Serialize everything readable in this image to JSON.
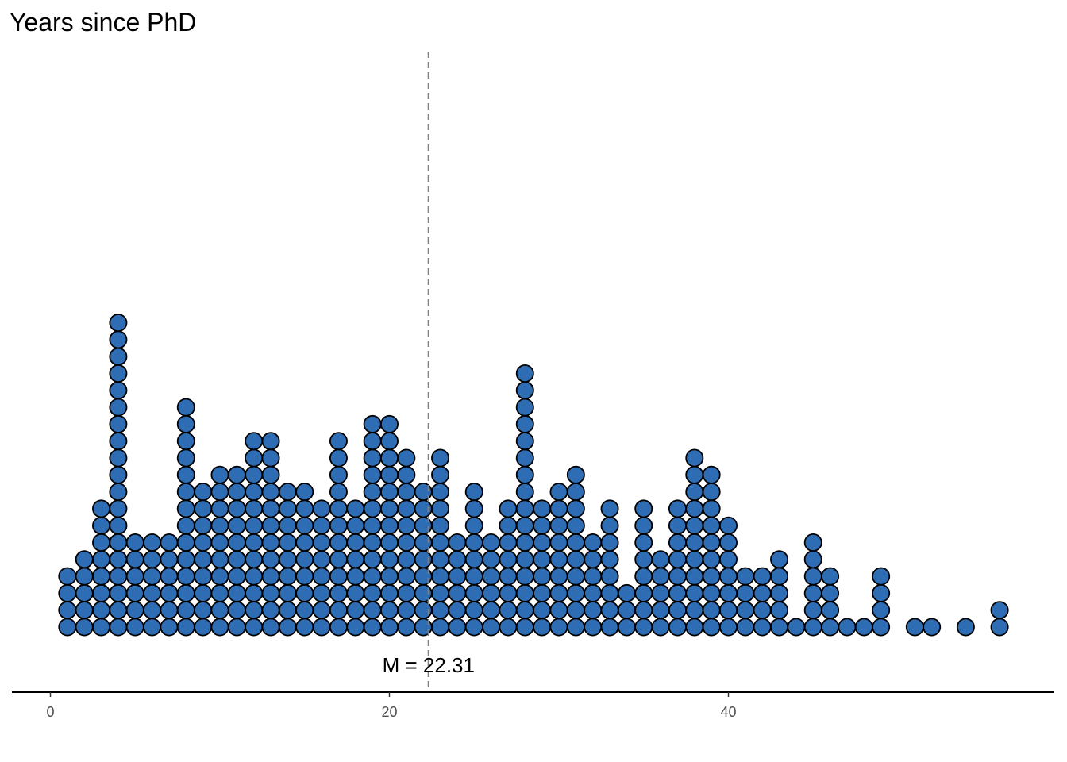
{
  "chart_data": {
    "type": "dotplot",
    "title": "Years since PhD",
    "xlabel": "",
    "ylabel": "",
    "xlim": [
      -1,
      59
    ],
    "x_ticks": [
      0,
      20,
      40
    ],
    "x_tick_labels": [
      "0",
      "20",
      "40"
    ],
    "grid": false,
    "legend": "none",
    "dot_fill": "#2E6DB4",
    "dot_stroke": "#000000",
    "mean": {
      "value": 22.31,
      "label": "M = 22.31",
      "line_color": "#808080"
    },
    "bins": [
      {
        "x": 1,
        "count": 4
      },
      {
        "x": 2,
        "count": 5
      },
      {
        "x": 3,
        "count": 8
      },
      {
        "x": 4,
        "count": 19
      },
      {
        "x": 5,
        "count": 6
      },
      {
        "x": 6,
        "count": 6
      },
      {
        "x": 7,
        "count": 6
      },
      {
        "x": 8,
        "count": 14
      },
      {
        "x": 9,
        "count": 9
      },
      {
        "x": 10,
        "count": 10
      },
      {
        "x": 11,
        "count": 10
      },
      {
        "x": 12,
        "count": 12
      },
      {
        "x": 13,
        "count": 12
      },
      {
        "x": 14,
        "count": 9
      },
      {
        "x": 15,
        "count": 9
      },
      {
        "x": 16,
        "count": 8
      },
      {
        "x": 17,
        "count": 12
      },
      {
        "x": 18,
        "count": 8
      },
      {
        "x": 19,
        "count": 13
      },
      {
        "x": 20,
        "count": 13
      },
      {
        "x": 21,
        "count": 11
      },
      {
        "x": 22,
        "count": 9
      },
      {
        "x": 23,
        "count": 11
      },
      {
        "x": 24,
        "count": 6
      },
      {
        "x": 25,
        "count": 9
      },
      {
        "x": 26,
        "count": 6
      },
      {
        "x": 27,
        "count": 8
      },
      {
        "x": 28,
        "count": 16
      },
      {
        "x": 29,
        "count": 8
      },
      {
        "x": 30,
        "count": 9
      },
      {
        "x": 31,
        "count": 10
      },
      {
        "x": 32,
        "count": 6
      },
      {
        "x": 33,
        "count": 8
      },
      {
        "x": 34,
        "count": 3
      },
      {
        "x": 35,
        "count": 8
      },
      {
        "x": 36,
        "count": 5
      },
      {
        "x": 37,
        "count": 8
      },
      {
        "x": 38,
        "count": 11
      },
      {
        "x": 39,
        "count": 10
      },
      {
        "x": 40,
        "count": 7
      },
      {
        "x": 41,
        "count": 4
      },
      {
        "x": 42,
        "count": 4
      },
      {
        "x": 43,
        "count": 5
      },
      {
        "x": 44,
        "count": 1
      },
      {
        "x": 45,
        "count": 6
      },
      {
        "x": 46,
        "count": 4
      },
      {
        "x": 47,
        "count": 1
      },
      {
        "x": 48,
        "count": 1
      },
      {
        "x": 49,
        "count": 4
      },
      {
        "x": 51,
        "count": 1
      },
      {
        "x": 52,
        "count": 1
      },
      {
        "x": 54,
        "count": 1
      },
      {
        "x": 56,
        "count": 2
      }
    ]
  }
}
